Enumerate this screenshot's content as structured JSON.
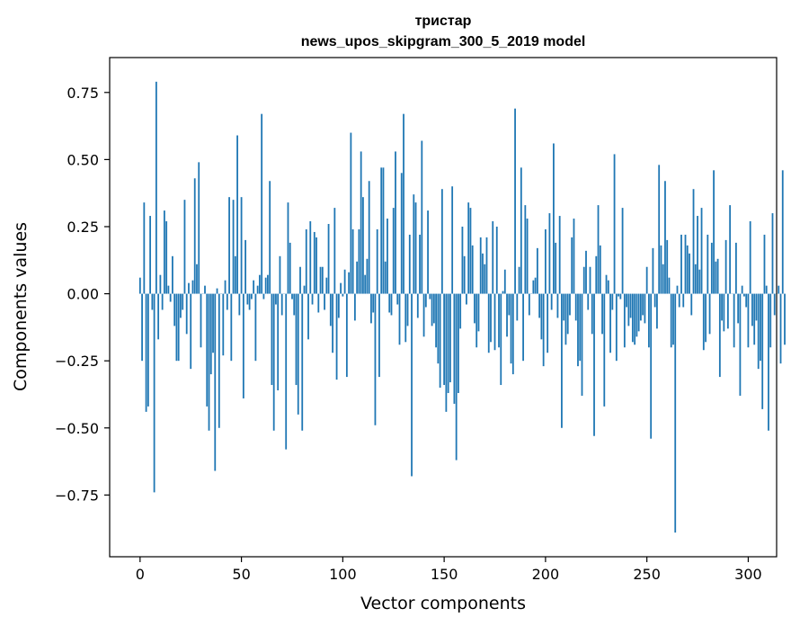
{
  "chart_data": {
    "type": "bar",
    "title": "тристар",
    "subtitle": "news_upos_skipgram_300_5_2019 model",
    "xlabel": "Vector components",
    "ylabel": "Components values",
    "xlim": [
      -15,
      314
    ],
    "ylim": [
      -0.98,
      0.88
    ],
    "xticks": [
      0,
      50,
      100,
      150,
      200,
      250,
      300
    ],
    "xtick_labels": [
      "0",
      "50",
      "100",
      "150",
      "200",
      "250",
      "300"
    ],
    "yticks": [
      -0.75,
      -0.5,
      -0.25,
      0.0,
      0.25,
      0.5,
      0.75
    ],
    "ytick_labels": [
      "−0.75",
      "−0.50",
      "−0.25",
      "0.00",
      "0.25",
      "0.50",
      "0.75"
    ],
    "grid": false,
    "color": "#1f77b4",
    "values": [
      0.06,
      -0.25,
      0.34,
      -0.44,
      -0.42,
      0.29,
      -0.06,
      -0.74,
      0.79,
      -0.17,
      0.07,
      -0.06,
      0.31,
      0.27,
      0.03,
      -0.03,
      0.14,
      -0.12,
      -0.25,
      -0.25,
      -0.09,
      -0.06,
      0.35,
      -0.15,
      0.04,
      -0.28,
      0.05,
      0.43,
      0.11,
      0.49,
      -0.2,
      0.0,
      0.03,
      -0.42,
      -0.51,
      -0.3,
      -0.22,
      -0.66,
      0.02,
      -0.5,
      0.0,
      -0.23,
      0.05,
      -0.06,
      0.36,
      -0.25,
      0.35,
      0.14,
      0.59,
      -0.08,
      0.36,
      -0.39,
      0.2,
      -0.04,
      -0.06,
      -0.02,
      0.05,
      -0.25,
      0.03,
      0.07,
      0.67,
      -0.02,
      0.06,
      0.07,
      0.42,
      -0.34,
      -0.51,
      -0.04,
      -0.36,
      0.14,
      -0.08,
      0.0,
      -0.58,
      0.34,
      0.19,
      -0.02,
      -0.08,
      -0.34,
      -0.45,
      0.1,
      -0.51,
      0.03,
      0.24,
      -0.17,
      0.27,
      -0.04,
      0.23,
      0.21,
      -0.07,
      0.1,
      0.1,
      -0.06,
      0.06,
      0.26,
      -0.12,
      -0.22,
      0.32,
      -0.32,
      -0.09,
      0.04,
      -0.01,
      0.09,
      -0.31,
      0.08,
      0.6,
      0.24,
      -0.1,
      0.12,
      0.24,
      0.53,
      0.36,
      0.07,
      0.13,
      0.42,
      -0.11,
      -0.07,
      -0.49,
      0.24,
      -0.31,
      0.47,
      0.47,
      0.12,
      0.28,
      -0.07,
      -0.08,
      0.32,
      0.53,
      -0.04,
      -0.19,
      0.45,
      0.67,
      -0.18,
      -0.12,
      0.22,
      -0.68,
      0.37,
      0.34,
      -0.09,
      0.22,
      0.57,
      -0.16,
      -0.05,
      0.31,
      -0.02,
      -0.12,
      -0.11,
      -0.2,
      -0.26,
      -0.35,
      0.39,
      -0.34,
      -0.44,
      -0.37,
      -0.33,
      0.4,
      -0.41,
      -0.62,
      -0.37,
      -0.13,
      0.25,
      0.14,
      -0.04,
      0.34,
      0.32,
      0.18,
      -0.11,
      -0.2,
      -0.14,
      0.21,
      0.15,
      0.11,
      0.21,
      -0.22,
      -0.18,
      0.27,
      -0.21,
      0.25,
      -0.2,
      -0.34,
      0.01,
      0.09,
      -0.16,
      -0.08,
      -0.26,
      -0.3,
      0.69,
      -0.1,
      0.1,
      0.47,
      -0.25,
      0.33,
      0.28,
      -0.08,
      0.0,
      0.05,
      0.06,
      0.17,
      -0.09,
      -0.17,
      -0.27,
      0.24,
      -0.22,
      0.3,
      -0.06,
      0.56,
      0.19,
      -0.09,
      0.29,
      -0.5,
      -0.1,
      -0.19,
      -0.15,
      -0.08,
      0.21,
      0.28,
      -0.1,
      -0.27,
      -0.25,
      -0.38,
      0.1,
      0.16,
      -0.06,
      0.1,
      -0.15,
      -0.53,
      0.14,
      0.33,
      0.18,
      -0.15,
      -0.42,
      0.07,
      0.05,
      -0.22,
      -0.06,
      0.52,
      -0.25,
      -0.01,
      -0.02,
      0.32,
      -0.2,
      -0.05,
      -0.12,
      -0.09,
      -0.18,
      -0.19,
      -0.16,
      -0.14,
      -0.1,
      -0.08,
      -0.11,
      0.1,
      -0.2,
      -0.54,
      0.17,
      -0.05,
      -0.13,
      0.48,
      0.18,
      0.11,
      0.42,
      0.2,
      0.06,
      -0.2,
      -0.19,
      -0.89,
      0.03,
      -0.05,
      0.22,
      -0.05,
      0.22,
      0.18,
      0.15,
      -0.08,
      0.39,
      0.11,
      0.29,
      0.09,
      0.32,
      -0.21,
      -0.18,
      0.22,
      -0.15,
      0.19,
      0.46,
      0.12,
      0.13,
      -0.31,
      -0.1,
      -0.14,
      0.2,
      -0.13,
      0.33,
      0.0,
      -0.2,
      0.19,
      -0.11,
      -0.38,
      0.03,
      -0.01,
      -0.05,
      -0.2,
      0.27,
      -0.12,
      -0.19,
      -0.1,
      -0.28,
      -0.25,
      -0.43,
      0.22,
      0.03,
      -0.51,
      -0.2,
      0.3,
      -0.08,
      0.0,
      0.03,
      -0.26,
      0.46,
      -0.19
    ]
  }
}
